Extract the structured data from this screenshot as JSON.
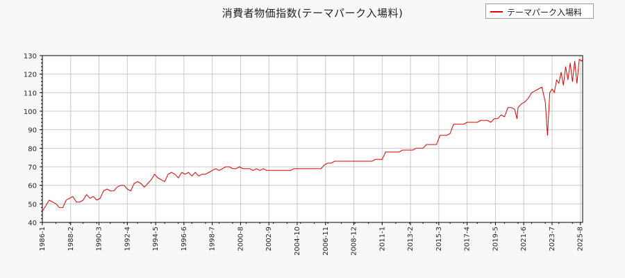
{
  "title": "消費者物価指数(テーマパーク入場料)",
  "legend": {
    "position": "top-right",
    "label": "テーマパーク入場料"
  },
  "colors": {
    "series": "#dd0000",
    "grid": "#c8c8c8",
    "background": "#f8f8f8",
    "plot_background": "#ffffff"
  },
  "chart_data": {
    "type": "line",
    "title": "消費者物価指数(テーマパーク入場料)",
    "xlabel": "",
    "ylabel": "",
    "ylim": [
      40,
      130
    ],
    "yticks": [
      40,
      50,
      60,
      70,
      80,
      90,
      100,
      110,
      120,
      130
    ],
    "xlim": [
      "1986-1",
      "2025-10"
    ],
    "xticks": [
      "1986-1",
      "1988-2",
      "1990-3",
      "1992-4",
      "1994-5",
      "1996-6",
      "1998-7",
      "2000-8",
      "2002-9",
      "2004-10",
      "2006-11",
      "2008-12",
      "2011-1",
      "2013-2",
      "2015-3",
      "2017-4",
      "2019-5",
      "2021-6",
      "2023-7",
      "2025-8"
    ],
    "grid": true,
    "series": [
      {
        "name": "テーマパーク入場料",
        "color": "#dd0000",
        "points": [
          [
            "1986-1",
            46
          ],
          [
            "1986-4",
            49
          ],
          [
            "1986-7",
            52
          ],
          [
            "1986-10",
            51
          ],
          [
            "1987-1",
            50
          ],
          [
            "1987-4",
            48
          ],
          [
            "1987-7",
            48
          ],
          [
            "1987-10",
            52
          ],
          [
            "1988-1",
            53
          ],
          [
            "1988-4",
            54
          ],
          [
            "1988-7",
            51
          ],
          [
            "1988-10",
            51
          ],
          [
            "1989-1",
            52
          ],
          [
            "1989-4",
            55
          ],
          [
            "1989-7",
            53
          ],
          [
            "1989-10",
            54
          ],
          [
            "1990-1",
            52
          ],
          [
            "1990-4",
            53
          ],
          [
            "1990-7",
            57
          ],
          [
            "1990-10",
            58
          ],
          [
            "1991-1",
            57
          ],
          [
            "1991-4",
            57
          ],
          [
            "1991-7",
            59
          ],
          [
            "1991-10",
            60
          ],
          [
            "1992-1",
            60
          ],
          [
            "1992-4",
            58
          ],
          [
            "1992-7",
            57
          ],
          [
            "1992-10",
            61
          ],
          [
            "1993-1",
            62
          ],
          [
            "1993-4",
            61
          ],
          [
            "1993-7",
            59
          ],
          [
            "1993-10",
            61
          ],
          [
            "1994-1",
            63
          ],
          [
            "1994-4",
            66
          ],
          [
            "1994-7",
            64
          ],
          [
            "1994-10",
            63
          ],
          [
            "1995-1",
            62
          ],
          [
            "1995-4",
            66
          ],
          [
            "1995-7",
            67
          ],
          [
            "1995-10",
            66
          ],
          [
            "1996-1",
            64
          ],
          [
            "1996-4",
            67
          ],
          [
            "1996-7",
            66
          ],
          [
            "1996-10",
            67
          ],
          [
            "1997-1",
            65
          ],
          [
            "1997-4",
            67
          ],
          [
            "1997-7",
            65
          ],
          [
            "1997-10",
            66
          ],
          [
            "1998-1",
            66
          ],
          [
            "1998-4",
            67
          ],
          [
            "1998-7",
            68
          ],
          [
            "1998-10",
            69
          ],
          [
            "1999-1",
            68
          ],
          [
            "1999-4",
            69
          ],
          [
            "1999-7",
            70
          ],
          [
            "1999-10",
            70
          ],
          [
            "2000-1",
            69
          ],
          [
            "2000-4",
            69
          ],
          [
            "2000-7",
            70
          ],
          [
            "2000-10",
            69
          ],
          [
            "2001-1",
            69
          ],
          [
            "2001-4",
            69
          ],
          [
            "2001-7",
            68
          ],
          [
            "2001-10",
            69
          ],
          [
            "2002-1",
            68
          ],
          [
            "2002-4",
            69
          ],
          [
            "2002-7",
            68
          ],
          [
            "2002-10",
            68
          ],
          [
            "2003-1",
            68
          ],
          [
            "2003-4",
            68
          ],
          [
            "2003-7",
            68
          ],
          [
            "2003-10",
            68
          ],
          [
            "2004-1",
            68
          ],
          [
            "2004-4",
            68
          ],
          [
            "2004-7",
            69
          ],
          [
            "2004-10",
            69
          ],
          [
            "2005-1",
            69
          ],
          [
            "2005-4",
            69
          ],
          [
            "2005-7",
            69
          ],
          [
            "2005-10",
            69
          ],
          [
            "2006-1",
            69
          ],
          [
            "2006-4",
            69
          ],
          [
            "2006-7",
            69
          ],
          [
            "2006-10",
            71
          ],
          [
            "2007-1",
            72
          ],
          [
            "2007-4",
            72
          ],
          [
            "2007-7",
            73
          ],
          [
            "2007-10",
            73
          ],
          [
            "2008-1",
            73
          ],
          [
            "2008-4",
            73
          ],
          [
            "2008-7",
            73
          ],
          [
            "2008-10",
            73
          ],
          [
            "2009-1",
            73
          ],
          [
            "2009-4",
            73
          ],
          [
            "2009-7",
            73
          ],
          [
            "2009-10",
            73
          ],
          [
            "2010-1",
            73
          ],
          [
            "2010-4",
            73
          ],
          [
            "2010-7",
            74
          ],
          [
            "2010-10",
            74
          ],
          [
            "2011-1",
            74
          ],
          [
            "2011-4",
            78
          ],
          [
            "2011-7",
            78
          ],
          [
            "2011-10",
            78
          ],
          [
            "2012-1",
            78
          ],
          [
            "2012-4",
            78
          ],
          [
            "2012-7",
            79
          ],
          [
            "2012-10",
            79
          ],
          [
            "2013-1",
            79
          ],
          [
            "2013-4",
            79
          ],
          [
            "2013-7",
            80
          ],
          [
            "2013-10",
            80
          ],
          [
            "2014-1",
            80
          ],
          [
            "2014-4",
            82
          ],
          [
            "2014-7",
            82
          ],
          [
            "2014-10",
            82
          ],
          [
            "2015-1",
            82
          ],
          [
            "2015-4",
            87
          ],
          [
            "2015-7",
            87
          ],
          [
            "2015-10",
            87
          ],
          [
            "2016-1",
            88
          ],
          [
            "2016-4",
            93
          ],
          [
            "2016-7",
            93
          ],
          [
            "2016-10",
            93
          ],
          [
            "2017-1",
            93
          ],
          [
            "2017-4",
            94
          ],
          [
            "2017-7",
            94
          ],
          [
            "2017-10",
            94
          ],
          [
            "2018-1",
            94
          ],
          [
            "2018-4",
            95
          ],
          [
            "2018-7",
            95
          ],
          [
            "2018-10",
            95
          ],
          [
            "2019-1",
            94
          ],
          [
            "2019-4",
            96
          ],
          [
            "2019-7",
            96
          ],
          [
            "2019-10",
            98
          ],
          [
            "2020-1",
            97
          ],
          [
            "2020-4",
            102
          ],
          [
            "2020-7",
            102
          ],
          [
            "2020-10",
            101
          ],
          [
            "2020-12",
            96
          ],
          [
            "2021-1",
            102
          ],
          [
            "2021-4",
            104
          ],
          [
            "2021-7",
            105
          ],
          [
            "2021-10",
            107
          ],
          [
            "2022-1",
            110
          ],
          [
            "2022-4",
            111
          ],
          [
            "2022-7",
            112
          ],
          [
            "2022-10",
            113
          ],
          [
            "2023-1",
            105
          ],
          [
            "2023-3",
            87
          ],
          [
            "2023-5",
            110
          ],
          [
            "2023-7",
            112
          ],
          [
            "2023-9",
            110
          ],
          [
            "2023-11",
            117
          ],
          [
            "2024-1",
            115
          ],
          [
            "2024-3",
            121
          ],
          [
            "2024-5",
            114
          ],
          [
            "2024-7",
            124
          ],
          [
            "2024-9",
            117
          ],
          [
            "2024-11",
            126
          ],
          [
            "2025-1",
            116
          ],
          [
            "2025-3",
            127
          ],
          [
            "2025-5",
            115
          ],
          [
            "2025-7",
            128
          ],
          [
            "2025-9",
            127
          ],
          [
            "2025-10",
            128
          ]
        ]
      }
    ]
  }
}
